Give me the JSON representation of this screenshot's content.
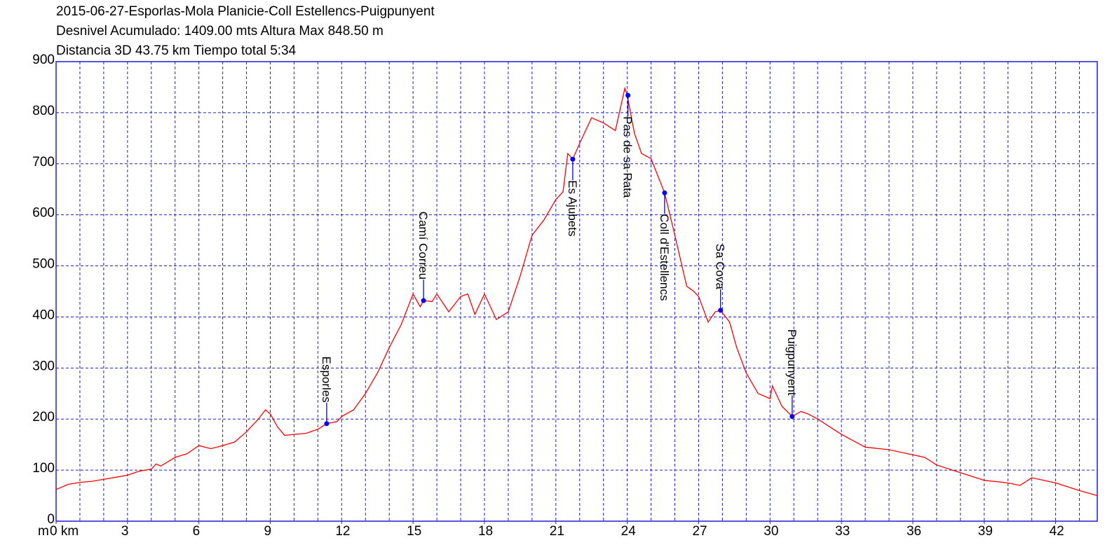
{
  "chart_data": {
    "type": "line",
    "title": "2015-06-27-Esporlas-Mola Planicie-Coll Estellencs-Puigpunyent",
    "subtitle": "Desnivel Acumulado: 1409.00 mts  Altura Max 848.50 m",
    "subtitle2": "Distancia 3D 43.75 km  Tiempo total 5:34",
    "ylabel": "m",
    "x": [
      0,
      0.5,
      1,
      1.5,
      2,
      2.5,
      3,
      3.5,
      4,
      4.2,
      4.4,
      5,
      5.5,
      6,
      6.5,
      7,
      7.5,
      8,
      8.5,
      8.8,
      9,
      9.3,
      9.6,
      10,
      10.5,
      11,
      11.37,
      11.8,
      12,
      12.5,
      13,
      13.5,
      14,
      14.5,
      15,
      15.3,
      15.44,
      15.8,
      16,
      16.5,
      17,
      17.3,
      17.6,
      18,
      18.5,
      19,
      19.5,
      20,
      20.5,
      21,
      21.3,
      21.5,
      21.71,
      22,
      22.5,
      23,
      23.5,
      23.9,
      24,
      24.3,
      24.6,
      25,
      25.57,
      26,
      26.5,
      26.8,
      27,
      27.4,
      27.7,
      27.92,
      28.3,
      28.6,
      29,
      29.5,
      30,
      30.1,
      30.5,
      30.93,
      31.3,
      31.6,
      32,
      33,
      34,
      35,
      35.5,
      36,
      36.5,
      37,
      38,
      39,
      40,
      40.5,
      41,
      42,
      43,
      43.75
    ],
    "series": [
      {
        "color": "#ff0000",
        "values": [
          62,
          72,
          76,
          78,
          82,
          86,
          90,
          98,
          102,
          112,
          108,
          125,
          132,
          148,
          142,
          148,
          155,
          175,
          200,
          218,
          210,
          185,
          168,
          170,
          172,
          180,
          191,
          195,
          205,
          218,
          250,
          290,
          340,
          385,
          445,
          420,
          432,
          430,
          445,
          410,
          440,
          445,
          405,
          445,
          395,
          410,
          480,
          560,
          590,
          630,
          645,
          720,
          709,
          740,
          790,
          780,
          765,
          848,
          834,
          760,
          720,
          710,
          643,
          560,
          460,
          450,
          440,
          390,
          410,
          413,
          390,
          340,
          290,
          250,
          240,
          265,
          225,
          205,
          215,
          210,
          200,
          170,
          145,
          140,
          135,
          130,
          125,
          110,
          95,
          80,
          75,
          70,
          85,
          75,
          60,
          50
        ]
      }
    ],
    "xlim": [
      0,
      43.75
    ],
    "ylim": [
      0,
      900
    ],
    "xticks": [
      {
        "value": 0,
        "label": "0 km"
      },
      3,
      6,
      9,
      12,
      15,
      18,
      21,
      24,
      27,
      30,
      33,
      36,
      39,
      42
    ],
    "x_minor_ticks": [
      1,
      2,
      3,
      4,
      5,
      6,
      7,
      8,
      9,
      10,
      11,
      12,
      13,
      14,
      15,
      16,
      17,
      18,
      19,
      20,
      21,
      22,
      23,
      24,
      25,
      26,
      27,
      28,
      29,
      30,
      31,
      32,
      33,
      34,
      35,
      36,
      37,
      38,
      39,
      40,
      41,
      42,
      43
    ],
    "yticks": [
      0,
      100,
      200,
      300,
      400,
      500,
      600,
      700,
      800,
      900
    ],
    "grid": true,
    "frame_color": "#1f1fd6",
    "marker_color": "#0000ff",
    "annotations": [
      {
        "label": "Esporles",
        "x": 11.37,
        "y": 191,
        "position": "above"
      },
      {
        "label": "Camí Correu",
        "x": 15.44,
        "y": 432,
        "position": "above"
      },
      {
        "label": "Es Ajubets",
        "x": 21.71,
        "y": 709,
        "position": "below"
      },
      {
        "label": "Pas de sa Rata",
        "x": 24.03,
        "y": 834,
        "position": "below"
      },
      {
        "label": "Coll d'Estellencs",
        "x": 25.57,
        "y": 643,
        "position": "below"
      },
      {
        "label": "Sa Cova",
        "x": 27.92,
        "y": 413,
        "position": "above"
      },
      {
        "label": "Puigpunyent",
        "x": 30.93,
        "y": 205,
        "position": "above"
      }
    ]
  }
}
